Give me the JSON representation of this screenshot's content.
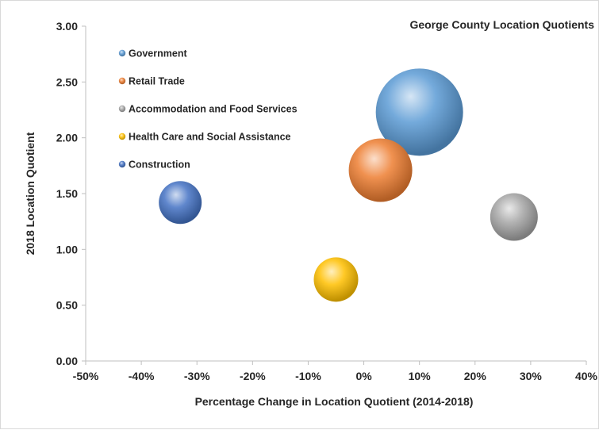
{
  "chart_data": {
    "type": "bubble",
    "title": "George County Location Quotients",
    "xlabel": "Percentage Change in Location Quotient (2014-2018)",
    "ylabel": "2018 Location Quotient",
    "xlim": [
      -0.5,
      0.4
    ],
    "ylim": [
      0,
      3
    ],
    "x_ticks": [
      "-50%",
      "-40%",
      "-30%",
      "-20%",
      "-10%",
      "0%",
      "10%",
      "20%",
      "30%",
      "40%"
    ],
    "x_tick_values": [
      -0.5,
      -0.4,
      -0.3,
      -0.2,
      -0.1,
      0,
      0.1,
      0.2,
      0.3,
      0.4
    ],
    "y_ticks": [
      "0.00",
      "0.50",
      "1.00",
      "1.50",
      "2.00",
      "2.50",
      "3.00"
    ],
    "y_tick_values": [
      0,
      0.5,
      1,
      1.5,
      2,
      2.5,
      3
    ],
    "grid": false,
    "legend_position": "top-left",
    "series": [
      {
        "name": "Government",
        "x": 0.1,
        "y": 2.23,
        "size": 55,
        "color": "#5b9bd5"
      },
      {
        "name": "Retail Trade",
        "x": 0.03,
        "y": 1.71,
        "size": 40,
        "color": "#ed7d31"
      },
      {
        "name": "Accommodation and Food Services",
        "x": 0.27,
        "y": 1.29,
        "size": 30,
        "color": "#a5a5a5"
      },
      {
        "name": "Health Care and Social Assistance",
        "x": -0.05,
        "y": 0.73,
        "size": 28,
        "color": "#ffc000"
      },
      {
        "name": "Construction",
        "x": -0.33,
        "y": 1.42,
        "size": 27,
        "color": "#4472c4"
      }
    ]
  }
}
